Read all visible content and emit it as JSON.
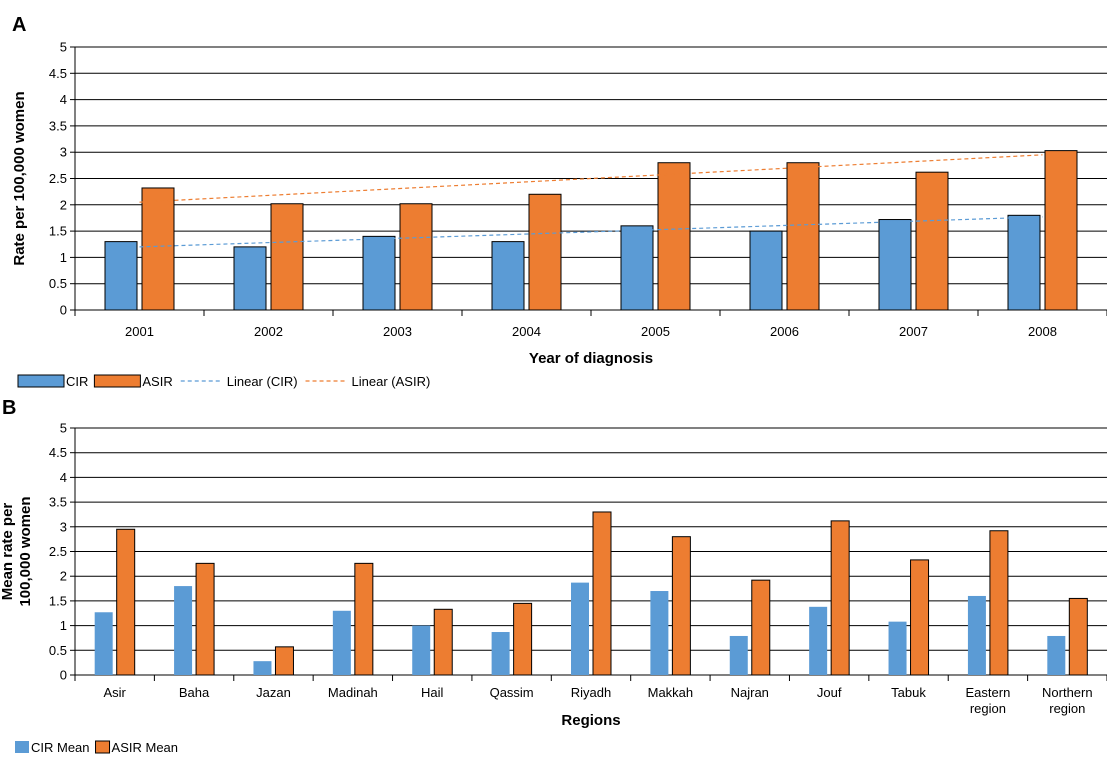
{
  "colors": {
    "cir": "#5b9bd5",
    "asir": "#ed7d31",
    "linear_cir": "#5b9bd5",
    "linear_asir": "#ed7d31",
    "bar_stroke": "#000000"
  },
  "chart_data": [
    {
      "panel_label": "A",
      "type": "bar",
      "xlabel": "Year of diagnosis",
      "ylabel": "Rate per 100,000 women",
      "ylim": [
        0,
        5
      ],
      "yticks": [
        "0",
        "0.5",
        "1",
        "1.5",
        "2",
        "2.5",
        "3",
        "3.5",
        "4",
        "4.5",
        "5"
      ],
      "grid": "horizontal",
      "legend_position": "bottom-left",
      "categories": [
        "2001",
        "2002",
        "2003",
        "2004",
        "2005",
        "2006",
        "2007",
        "2008"
      ],
      "series": [
        {
          "name": "CIR",
          "kind": "bar",
          "values": [
            1.3,
            1.2,
            1.4,
            1.3,
            1.6,
            1.5,
            1.72,
            1.8
          ]
        },
        {
          "name": "ASIR",
          "kind": "bar",
          "values": [
            2.32,
            2.02,
            2.02,
            2.2,
            2.8,
            2.8,
            2.62,
            3.03
          ]
        },
        {
          "name": "Linear (CIR)",
          "kind": "trendline",
          "start": 1.2,
          "end": 1.77
        },
        {
          "name": "Linear (ASIR)",
          "kind": "trendline",
          "start": 2.05,
          "end": 2.95
        }
      ]
    },
    {
      "panel_label": "B",
      "type": "bar",
      "xlabel": "Regions",
      "ylabel": "Mean rate per 100,000 women",
      "ylim": [
        0,
        5
      ],
      "yticks": [
        "0",
        "0.5",
        "1",
        "1.5",
        "2",
        "2.5",
        "3",
        "3.5",
        "4",
        "4.5",
        "5"
      ],
      "grid": "horizontal",
      "legend_position": "bottom-left",
      "categories": [
        "Asir",
        "Baha",
        "Jazan",
        "Madinah",
        "Hail",
        "Qassim",
        "Riyadh",
        "Makkah",
        "Najran",
        "Jouf",
        "Tabuk",
        "Eastern region",
        "Northern region"
      ],
      "series": [
        {
          "name": "CIR Mean",
          "kind": "bar",
          "values": [
            1.27,
            1.8,
            0.28,
            1.3,
            1.0,
            0.87,
            1.87,
            1.7,
            0.79,
            1.38,
            1.08,
            1.6,
            0.79
          ]
        },
        {
          "name": "ASIR Mean",
          "kind": "bar",
          "values": [
            2.95,
            2.26,
            0.57,
            2.26,
            1.33,
            1.45,
            3.3,
            2.8,
            1.92,
            3.12,
            2.33,
            2.92,
            1.55
          ]
        }
      ]
    }
  ]
}
